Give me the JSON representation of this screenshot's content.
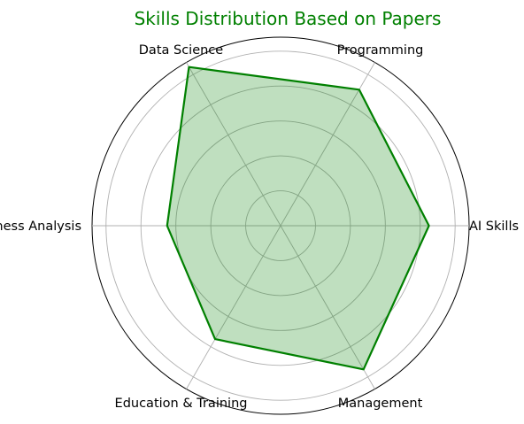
{
  "chart_data": {
    "type": "radar",
    "title": "Skills Distribution Based on Papers",
    "categories": [
      "AI Skills",
      "Programming",
      "Data Science",
      "Business Analysis",
      "Education & Training",
      "Management"
    ],
    "series": [
      {
        "values": [
          8.5,
          9.0,
          10.5,
          6.5,
          7.5,
          9.5
        ]
      }
    ],
    "rlim": [
      0,
      10.8
    ],
    "grid": true,
    "colors": {
      "line": "#008000",
      "fill": "#008000",
      "title": "#008000"
    }
  }
}
